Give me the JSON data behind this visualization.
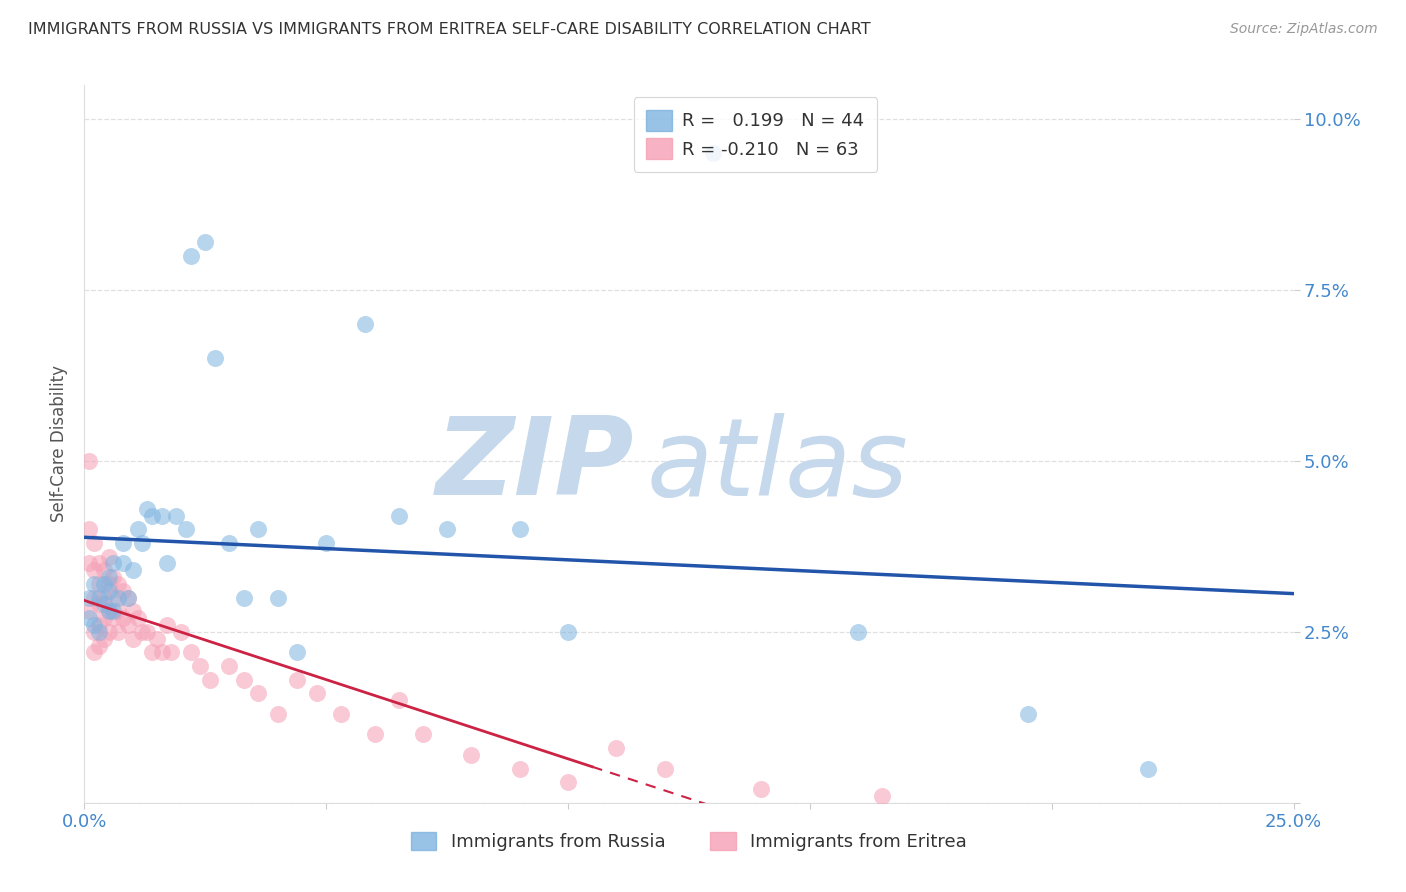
{
  "title": "IMMIGRANTS FROM RUSSIA VS IMMIGRANTS FROM ERITREA SELF-CARE DISABILITY CORRELATION CHART",
  "source": "Source: ZipAtlas.com",
  "ylabel": "Self-Care Disability",
  "xlim": [
    0.0,
    0.25
  ],
  "ylim": [
    0.0,
    0.105
  ],
  "xticks": [
    0.0,
    0.05,
    0.1,
    0.15,
    0.2,
    0.25
  ],
  "yticks": [
    0.0,
    0.025,
    0.05,
    0.075,
    0.1
  ],
  "xtick_labels": [
    "0.0%",
    "",
    "",
    "",
    "",
    "25.0%"
  ],
  "ytick_labels_right": [
    "",
    "2.5%",
    "5.0%",
    "7.5%",
    "10.0%"
  ],
  "russia_color": "#7EB3E0",
  "eritrea_color": "#F5A0B5",
  "russia_line_color": "#2255AA",
  "eritrea_line_color": "#CC2244",
  "russia_R": 0.199,
  "russia_N": 44,
  "eritrea_R": -0.21,
  "eritrea_N": 63,
  "russia_x": [
    0.001,
    0.001,
    0.002,
    0.002,
    0.003,
    0.003,
    0.004,
    0.004,
    0.005,
    0.005,
    0.005,
    0.006,
    0.006,
    0.007,
    0.008,
    0.008,
    0.009,
    0.01,
    0.011,
    0.012,
    0.013,
    0.014,
    0.016,
    0.017,
    0.019,
    0.021,
    0.022,
    0.025,
    0.027,
    0.03,
    0.033,
    0.036,
    0.04,
    0.044,
    0.05,
    0.058,
    0.065,
    0.075,
    0.09,
    0.1,
    0.13,
    0.16,
    0.195,
    0.22
  ],
  "russia_y": [
    0.03,
    0.027,
    0.032,
    0.026,
    0.03,
    0.025,
    0.029,
    0.032,
    0.028,
    0.033,
    0.031,
    0.035,
    0.028,
    0.03,
    0.035,
    0.038,
    0.03,
    0.034,
    0.04,
    0.038,
    0.043,
    0.042,
    0.042,
    0.035,
    0.042,
    0.04,
    0.08,
    0.082,
    0.065,
    0.038,
    0.03,
    0.04,
    0.03,
    0.022,
    0.038,
    0.07,
    0.042,
    0.04,
    0.04,
    0.025,
    0.095,
    0.025,
    0.013,
    0.005
  ],
  "eritrea_x": [
    0.001,
    0.001,
    0.001,
    0.001,
    0.002,
    0.002,
    0.002,
    0.002,
    0.002,
    0.003,
    0.003,
    0.003,
    0.003,
    0.003,
    0.004,
    0.004,
    0.004,
    0.004,
    0.005,
    0.005,
    0.005,
    0.005,
    0.006,
    0.006,
    0.006,
    0.007,
    0.007,
    0.007,
    0.008,
    0.008,
    0.009,
    0.009,
    0.01,
    0.01,
    0.011,
    0.012,
    0.013,
    0.014,
    0.015,
    0.016,
    0.017,
    0.018,
    0.02,
    0.022,
    0.024,
    0.026,
    0.03,
    0.033,
    0.036,
    0.04,
    0.044,
    0.048,
    0.053,
    0.06,
    0.065,
    0.07,
    0.08,
    0.09,
    0.1,
    0.11,
    0.12,
    0.14,
    0.165
  ],
  "eritrea_y": [
    0.05,
    0.04,
    0.035,
    0.028,
    0.038,
    0.034,
    0.03,
    0.025,
    0.022,
    0.035,
    0.032,
    0.029,
    0.026,
    0.023,
    0.034,
    0.03,
    0.027,
    0.024,
    0.036,
    0.032,
    0.028,
    0.025,
    0.033,
    0.03,
    0.027,
    0.032,
    0.028,
    0.025,
    0.031,
    0.027,
    0.03,
    0.026,
    0.028,
    0.024,
    0.027,
    0.025,
    0.025,
    0.022,
    0.024,
    0.022,
    0.026,
    0.022,
    0.025,
    0.022,
    0.02,
    0.018,
    0.02,
    0.018,
    0.016,
    0.013,
    0.018,
    0.016,
    0.013,
    0.01,
    0.015,
    0.01,
    0.007,
    0.005,
    0.003,
    0.008,
    0.005,
    0.002,
    0.001
  ],
  "watermark_zip": "ZIP",
  "watermark_atlas": "atlas",
  "watermark_color": "#C5D8EC",
  "background_color": "#FFFFFF",
  "grid_color": "#E0E0E0",
  "title_color": "#333333",
  "axis_tick_color": "#4488CC",
  "label_color": "#555555",
  "legend_edge_color": "#CCCCCC",
  "bottom_legend_russia": "Immigrants from Russia",
  "bottom_legend_eritrea": "Immigrants from Eritrea"
}
